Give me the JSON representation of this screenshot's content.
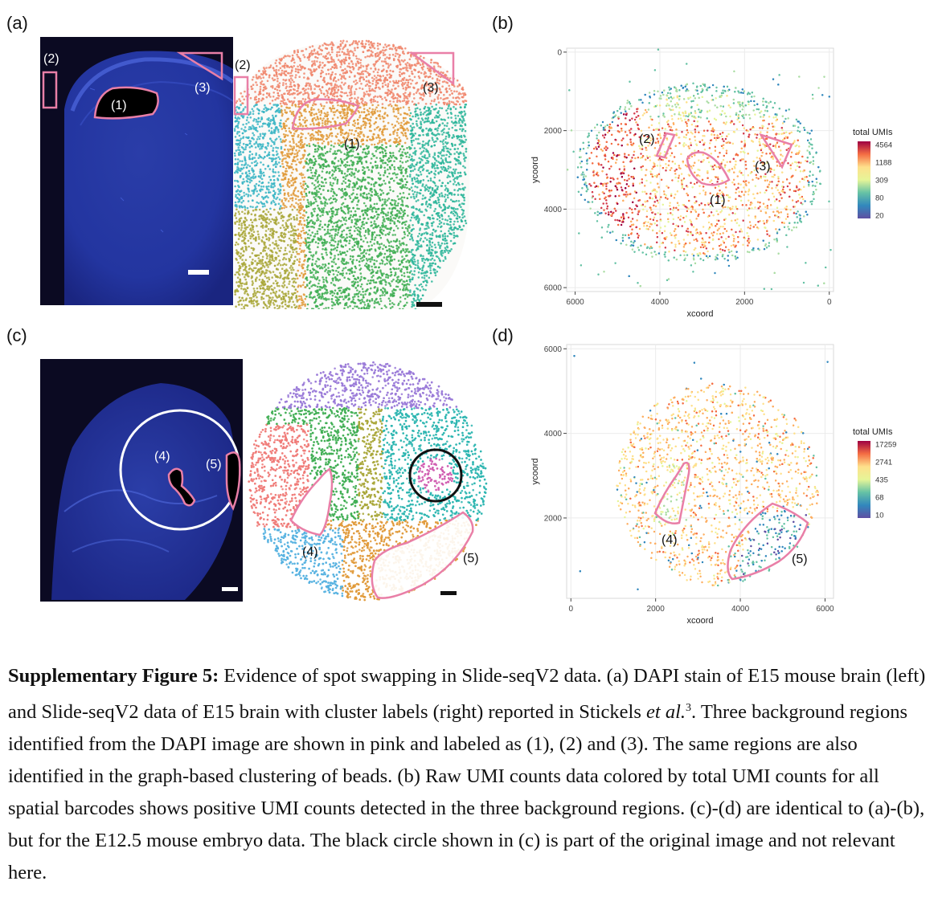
{
  "panels": {
    "a": {
      "letter": "(a)",
      "dapi_labels": [
        "(1)",
        "(2)",
        "(3)"
      ],
      "cluster_labels": [
        "(1)",
        "(2)",
        "(3)"
      ]
    },
    "b": {
      "letter": "(b)",
      "region_labels": [
        "(1)",
        "(2)",
        "(3)"
      ]
    },
    "c": {
      "letter": "(c)",
      "dapi_labels": [
        "(4)",
        "(5)"
      ],
      "cluster_labels": [
        "(4)",
        "(5)"
      ]
    },
    "d": {
      "letter": "(d)",
      "region_labels": [
        "(4)",
        "(5)"
      ]
    }
  },
  "chart_data": [
    {
      "type": "scatter",
      "panel": "b",
      "xlabel": "xcoord",
      "ylabel": "ycoord",
      "x_ticks": [
        "6000",
        "4000",
        "2000",
        "0"
      ],
      "y_ticks": [
        "0",
        "2000",
        "4000",
        "6000"
      ],
      "xlim": [
        6200,
        -100
      ],
      "ylim": [
        -100,
        6100
      ],
      "x_reversed": true,
      "y_reversed": true,
      "grid": true,
      "legend_title": "total UMIs",
      "legend_ticks": [
        "4564",
        "1188",
        "309",
        "80",
        "20"
      ],
      "legend_placement": "right",
      "colors": [
        "#9e0142",
        "#f46d43",
        "#fee08b",
        "#e6f598",
        "#66c2a5",
        "#3288bd",
        "#5e4fa2"
      ]
    },
    {
      "type": "scatter",
      "panel": "d",
      "xlabel": "xcoord",
      "ylabel": "ycoord",
      "x_ticks": [
        "0",
        "2000",
        "4000",
        "6000"
      ],
      "y_ticks": [
        "2000",
        "4000",
        "6000"
      ],
      "xlim": [
        -100,
        6200
      ],
      "ylim": [
        100,
        6100
      ],
      "grid": true,
      "legend_title": "total UMIs",
      "legend_ticks": [
        "17259",
        "2741",
        "435",
        "68",
        "10"
      ],
      "legend_placement": "right",
      "colors": [
        "#9e0142",
        "#f46d43",
        "#fee08b",
        "#e6f598",
        "#66c2a5",
        "#3288bd",
        "#5e4fa2"
      ]
    }
  ],
  "caption": {
    "bold": "Supplementary Figure 5:",
    "part1": " Evidence of spot swapping in Slide-seqV2 data. (a) DAPI stain of E15 mouse brain (left) and Slide-seqV2 data of E15 brain with cluster labels (right) reported in Stickels ",
    "etal": "et al.",
    "sup": "3",
    "part2": ". Three background regions identified from the DAPI image are shown in pink and labeled as (1), (2) and (3). The same regions are also identified in the graph-based clustering of beads. (b) Raw UMI counts data colored by total UMI counts for all spatial barcodes shows positive UMI counts detected in the three background regions. (c)-(d) are identical to (a)-(b), but for the E12.5 mouse embryo data. The black circle shown in (c) is part of the original image and not relevant here."
  }
}
